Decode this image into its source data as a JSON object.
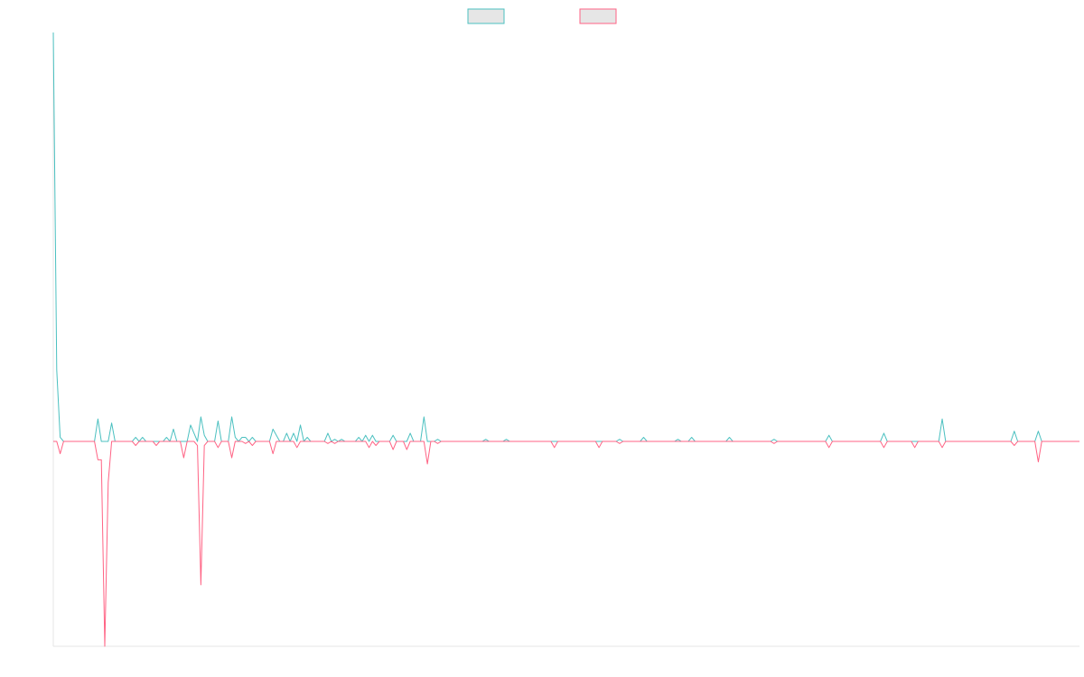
{
  "chart_data": {
    "type": "line",
    "title": "",
    "xlabel": "",
    "ylabel": "",
    "x_count": 300,
    "ylim": [
      -100,
      200
    ],
    "grid": false,
    "legend_position": "top-center",
    "series": [
      {
        "label": "",
        "color": "#4BC0C0",
        "legend_fill": "#E6E6E6",
        "points": [
          [
            0,
            200
          ],
          [
            1,
            35
          ],
          [
            2,
            2
          ],
          [
            3,
            0
          ],
          [
            12,
            0
          ],
          [
            13,
            11
          ],
          [
            14,
            0
          ],
          [
            16,
            0
          ],
          [
            17,
            9
          ],
          [
            18,
            0
          ],
          [
            23,
            0
          ],
          [
            24,
            2
          ],
          [
            25,
            0
          ],
          [
            26,
            2
          ],
          [
            27,
            0
          ],
          [
            32,
            0
          ],
          [
            33,
            2
          ],
          [
            34,
            0
          ],
          [
            35,
            6
          ],
          [
            36,
            0
          ],
          [
            39,
            0
          ],
          [
            40,
            8
          ],
          [
            41,
            4
          ],
          [
            42,
            0
          ],
          [
            43,
            12
          ],
          [
            44,
            3
          ],
          [
            45,
            0
          ],
          [
            47,
            0
          ],
          [
            48,
            10
          ],
          [
            49,
            0
          ],
          [
            51,
            0
          ],
          [
            52,
            12
          ],
          [
            53,
            2
          ],
          [
            54,
            0
          ],
          [
            55,
            2
          ],
          [
            56,
            2
          ],
          [
            57,
            0
          ],
          [
            58,
            2
          ],
          [
            59,
            0
          ],
          [
            63,
            0
          ],
          [
            64,
            6
          ],
          [
            65,
            3
          ],
          [
            66,
            0
          ],
          [
            67,
            0
          ],
          [
            68,
            4
          ],
          [
            69,
            0
          ],
          [
            70,
            4
          ],
          [
            71,
            0
          ],
          [
            72,
            8
          ],
          [
            73,
            0
          ],
          [
            74,
            2
          ],
          [
            75,
            0
          ],
          [
            79,
            0
          ],
          [
            80,
            4
          ],
          [
            81,
            0
          ],
          [
            82,
            1
          ],
          [
            83,
            0
          ],
          [
            84,
            1
          ],
          [
            85,
            0
          ],
          [
            88,
            0
          ],
          [
            89,
            2
          ],
          [
            90,
            0
          ],
          [
            91,
            3
          ],
          [
            92,
            0
          ],
          [
            93,
            3
          ],
          [
            94,
            0
          ],
          [
            98,
            0
          ],
          [
            99,
            3
          ],
          [
            100,
            0
          ],
          [
            103,
            0
          ],
          [
            104,
            4
          ],
          [
            105,
            0
          ],
          [
            107,
            0
          ],
          [
            108,
            12
          ],
          [
            109,
            0
          ],
          [
            111,
            0
          ],
          [
            112,
            1
          ],
          [
            113,
            0
          ],
          [
            125,
            0
          ],
          [
            126,
            1
          ],
          [
            127,
            0
          ],
          [
            131,
            0
          ],
          [
            132,
            1
          ],
          [
            133,
            0
          ],
          [
            164,
            0
          ],
          [
            165,
            1
          ],
          [
            166,
            0
          ],
          [
            171,
            0
          ],
          [
            172,
            2
          ],
          [
            173,
            0
          ],
          [
            181,
            0
          ],
          [
            182,
            1
          ],
          [
            183,
            0
          ],
          [
            185,
            0
          ],
          [
            186,
            2
          ],
          [
            187,
            0
          ],
          [
            196,
            0
          ],
          [
            197,
            2
          ],
          [
            198,
            0
          ],
          [
            209,
            0
          ],
          [
            210,
            1
          ],
          [
            211,
            0
          ],
          [
            225,
            0
          ],
          [
            226,
            3
          ],
          [
            227,
            0
          ],
          [
            241,
            0
          ],
          [
            242,
            4
          ],
          [
            243,
            0
          ],
          [
            258,
            0
          ],
          [
            259,
            11
          ],
          [
            260,
            0
          ],
          [
            279,
            0
          ],
          [
            280,
            5
          ],
          [
            281,
            0
          ],
          [
            286,
            0
          ],
          [
            287,
            5
          ],
          [
            288,
            0
          ],
          [
            299,
            0
          ]
        ]
      },
      {
        "label": "",
        "color": "#FF6384",
        "legend_fill": "#E6E6E6",
        "points": [
          [
            0,
            0
          ],
          [
            1,
            0
          ],
          [
            2,
            -6
          ],
          [
            3,
            0
          ],
          [
            12,
            0
          ],
          [
            13,
            -9
          ],
          [
            14,
            -9
          ],
          [
            15,
            -100
          ],
          [
            16,
            -20
          ],
          [
            17,
            0
          ],
          [
            23,
            0
          ],
          [
            24,
            -2
          ],
          [
            25,
            0
          ],
          [
            29,
            0
          ],
          [
            30,
            -2
          ],
          [
            31,
            0
          ],
          [
            37,
            0
          ],
          [
            38,
            -8
          ],
          [
            39,
            0
          ],
          [
            41,
            0
          ],
          [
            42,
            -2
          ],
          [
            43,
            -70
          ],
          [
            44,
            -2
          ],
          [
            45,
            0
          ],
          [
            47,
            0
          ],
          [
            48,
            -3
          ],
          [
            49,
            0
          ],
          [
            51,
            0
          ],
          [
            52,
            -8
          ],
          [
            53,
            0
          ],
          [
            55,
            0
          ],
          [
            56,
            -1
          ],
          [
            57,
            0
          ],
          [
            58,
            -2
          ],
          [
            59,
            0
          ],
          [
            63,
            0
          ],
          [
            64,
            -6
          ],
          [
            65,
            0
          ],
          [
            70,
            0
          ],
          [
            71,
            -3
          ],
          [
            72,
            0
          ],
          [
            79,
            0
          ],
          [
            80,
            -1
          ],
          [
            81,
            0
          ],
          [
            82,
            -1
          ],
          [
            83,
            0
          ],
          [
            91,
            0
          ],
          [
            92,
            -3
          ],
          [
            93,
            0
          ],
          [
            94,
            -2
          ],
          [
            95,
            0
          ],
          [
            98,
            0
          ],
          [
            99,
            -4
          ],
          [
            100,
            0
          ],
          [
            102,
            0
          ],
          [
            103,
            -4
          ],
          [
            104,
            0
          ],
          [
            108,
            0
          ],
          [
            109,
            -11
          ],
          [
            110,
            0
          ],
          [
            111,
            0
          ],
          [
            112,
            -1
          ],
          [
            113,
            0
          ],
          [
            145,
            0
          ],
          [
            146,
            -3
          ],
          [
            147,
            0
          ],
          [
            158,
            0
          ],
          [
            159,
            -3
          ],
          [
            160,
            0
          ],
          [
            164,
            0
          ],
          [
            165,
            -1
          ],
          [
            166,
            0
          ],
          [
            209,
            0
          ],
          [
            210,
            -1
          ],
          [
            211,
            0
          ],
          [
            225,
            0
          ],
          [
            226,
            -3
          ],
          [
            227,
            0
          ],
          [
            241,
            0
          ],
          [
            242,
            -3
          ],
          [
            243,
            0
          ],
          [
            250,
            0
          ],
          [
            251,
            -3
          ],
          [
            252,
            0
          ],
          [
            258,
            0
          ],
          [
            259,
            -3
          ],
          [
            260,
            0
          ],
          [
            279,
            0
          ],
          [
            280,
            -2
          ],
          [
            281,
            0
          ],
          [
            286,
            0
          ],
          [
            287,
            -10
          ],
          [
            288,
            0
          ],
          [
            299,
            0
          ]
        ]
      }
    ]
  }
}
